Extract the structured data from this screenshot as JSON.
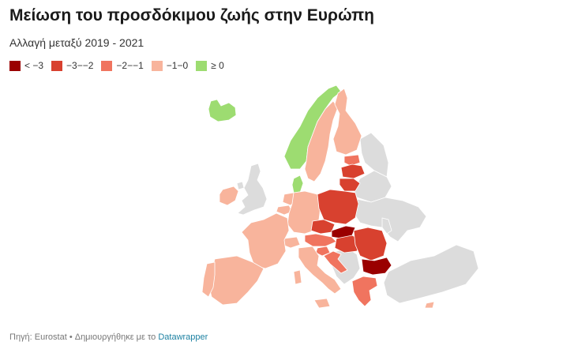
{
  "title": "Μείωση του προσδόκιμου ζωής στην Ευρώπη",
  "subtitle": "Αλλαγή μεταξύ 2019 - 2021",
  "legend": [
    {
      "label": "< −3",
      "color": "#9a0000"
    },
    {
      "label": "−3−−2",
      "color": "#d8412f"
    },
    {
      "label": "−2−−1",
      "color": "#f0745f"
    },
    {
      "label": "−1−0",
      "color": "#f8b49c"
    },
    {
      "label": "≥ 0",
      "color": "#9ddc71"
    }
  ],
  "nodata_color": "#dcdcdc",
  "footer": {
    "source": "Πηγή: Eurostat • Δημιουργήθηκε με το ",
    "tool": "Datawrapper"
  },
  "regions": [
    {
      "name": "Iceland",
      "class": "≥ 0"
    },
    {
      "name": "Norway",
      "class": "≥ 0"
    },
    {
      "name": "Denmark",
      "class": "≥ 0"
    },
    {
      "name": "Sweden",
      "class": "−1−0"
    },
    {
      "name": "Finland",
      "class": "−1−0"
    },
    {
      "name": "Ireland",
      "class": "−1−0"
    },
    {
      "name": "France",
      "class": "−1−0"
    },
    {
      "name": "Spain",
      "class": "−1−0"
    },
    {
      "name": "Portugal",
      "class": "−1−0"
    },
    {
      "name": "Italy",
      "class": "−1−0"
    },
    {
      "name": "Belgium",
      "class": "−1−0"
    },
    {
      "name": "Netherlands",
      "class": "−1−0"
    },
    {
      "name": "Germany",
      "class": "−1−0"
    },
    {
      "name": "Switzerland",
      "class": "−1−0"
    },
    {
      "name": "Austria",
      "class": "−2−−1"
    },
    {
      "name": "Slovenia",
      "class": "−2−−1"
    },
    {
      "name": "Croatia",
      "class": "−2−−1"
    },
    {
      "name": "Estonia",
      "class": "−2−−1"
    },
    {
      "name": "Greece",
      "class": "−2−−1"
    },
    {
      "name": "Cyprus",
      "class": "−1−0"
    },
    {
      "name": "Latvia",
      "class": "−3−−2"
    },
    {
      "name": "Lithuania",
      "class": "−3−−2"
    },
    {
      "name": "Poland",
      "class": "−3−−2"
    },
    {
      "name": "Czechia",
      "class": "−3−−2"
    },
    {
      "name": "Hungary",
      "class": "−3−−2"
    },
    {
      "name": "Romania",
      "class": "−3−−2"
    },
    {
      "name": "Slovakia",
      "class": "< −3"
    },
    {
      "name": "Bulgaria",
      "class": "< −3"
    }
  ]
}
